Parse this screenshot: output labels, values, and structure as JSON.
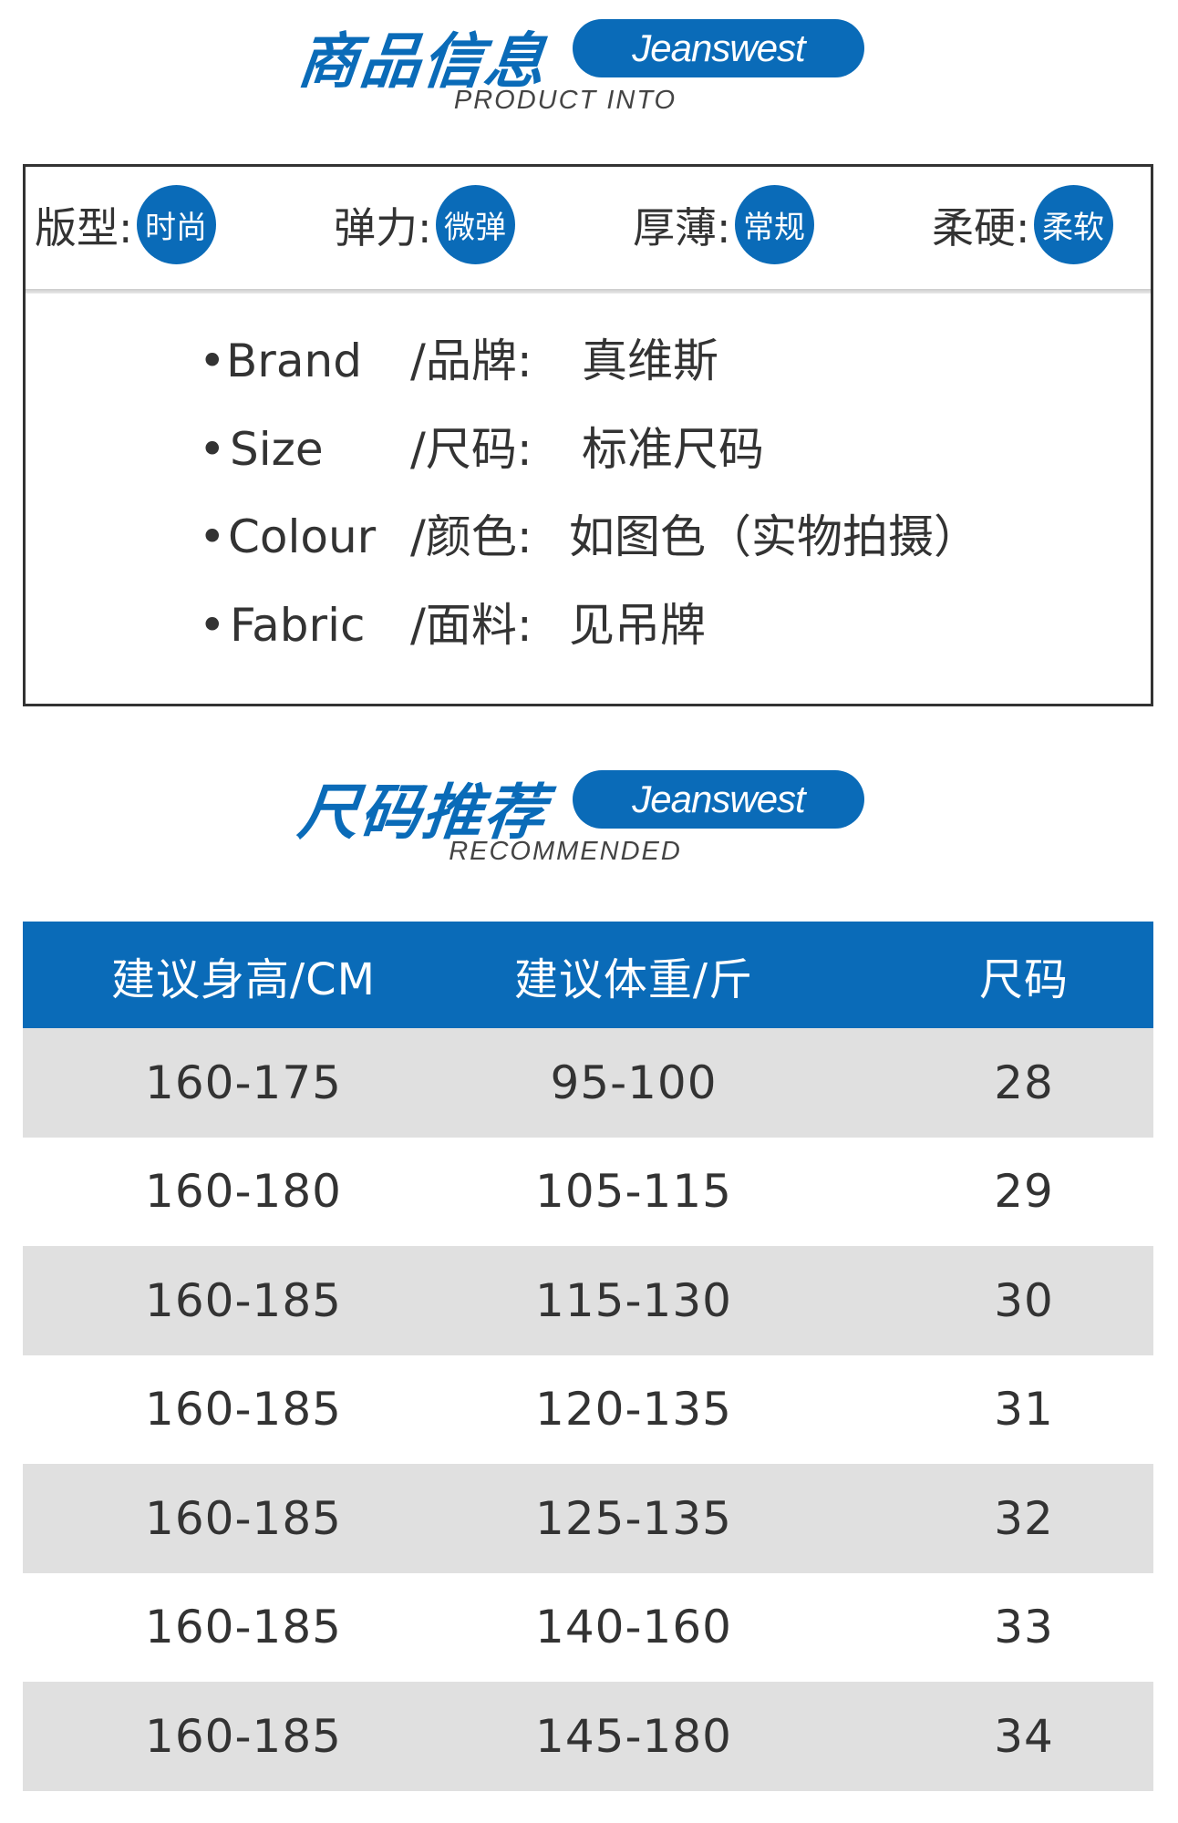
{
  "product_info": {
    "title": "商品信息",
    "logo": "Jeanswest",
    "subtitle": "PRODUCT INTO",
    "attributes": [
      {
        "label": "版型:",
        "value": "时尚"
      },
      {
        "label": "弹力:",
        "value": "微弹"
      },
      {
        "label": "厚薄:",
        "value": "常规"
      },
      {
        "label": "柔硬:",
        "value": "柔软"
      }
    ],
    "details": [
      {
        "en": "Brand",
        "zh": "/品牌:",
        "value": "真维斯"
      },
      {
        "en": "Size",
        "zh": "/尺码:",
        "value": "标准尺码"
      },
      {
        "en": "Colour",
        "zh": "/颜色:",
        "value": "如图色（实物拍摄）"
      },
      {
        "en": "Fabric",
        "zh": "/面料:",
        "value": "见吊牌"
      }
    ]
  },
  "size_recommend": {
    "title": "尺码推荐",
    "logo": "Jeanswest",
    "subtitle": "RECOMMENDED",
    "headers": [
      "建议身高/CM",
      "建议体重/斤",
      "尺码"
    ],
    "rows": [
      [
        "160-175",
        "95-100",
        "28"
      ],
      [
        "160-180",
        "105-115",
        "29"
      ],
      [
        "160-185",
        "115-130",
        "30"
      ],
      [
        "160-185",
        "120-135",
        "31"
      ],
      [
        "160-185",
        "125-135",
        "32"
      ],
      [
        "160-185",
        "140-160",
        "33"
      ],
      [
        "160-185",
        "145-180",
        "34"
      ]
    ]
  },
  "colors": {
    "accent": "#0a6bb8",
    "row_alt": "#e0e0e0"
  }
}
